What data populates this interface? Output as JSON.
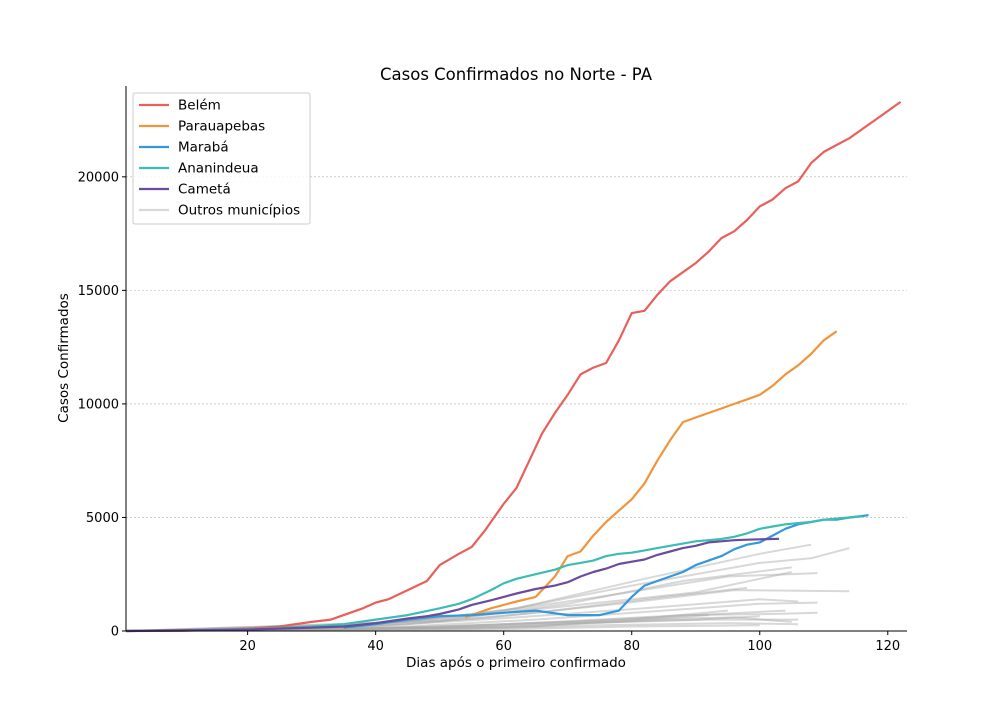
{
  "chart_data": {
    "type": "line",
    "title": "Casos Confirmados no Norte - PA",
    "xlabel": "Dias após o primeiro confirmado",
    "ylabel": "Casos Confirmados",
    "xlim": [
      1,
      123
    ],
    "ylim": [
      0,
      24000
    ],
    "x_ticks": [
      20,
      40,
      60,
      80,
      100,
      120
    ],
    "y_ticks": [
      0,
      5000,
      10000,
      15000,
      20000
    ],
    "grid": "horizontal dashed",
    "legend_position": "top-left",
    "series": [
      {
        "name": "Belém",
        "color": "#e8605a",
        "points": [
          [
            1,
            1
          ],
          [
            10,
            8
          ],
          [
            20,
            100
          ],
          [
            25,
            200
          ],
          [
            30,
            400
          ],
          [
            33,
            500
          ],
          [
            35,
            700
          ],
          [
            38,
            1000
          ],
          [
            40,
            1250
          ],
          [
            42,
            1400
          ],
          [
            45,
            1800
          ],
          [
            48,
            2200
          ],
          [
            50,
            2900
          ],
          [
            53,
            3400
          ],
          [
            55,
            3700
          ],
          [
            57,
            4400
          ],
          [
            60,
            5600
          ],
          [
            62,
            6300
          ],
          [
            64,
            7500
          ],
          [
            66,
            8700
          ],
          [
            68,
            9600
          ],
          [
            70,
            10400
          ],
          [
            72,
            11300
          ],
          [
            74,
            11600
          ],
          [
            76,
            11800
          ],
          [
            78,
            12800
          ],
          [
            80,
            14000
          ],
          [
            82,
            14100
          ],
          [
            84,
            14800
          ],
          [
            86,
            15400
          ],
          [
            88,
            15800
          ],
          [
            90,
            16200
          ],
          [
            92,
            16700
          ],
          [
            94,
            17300
          ],
          [
            96,
            17600
          ],
          [
            98,
            18100
          ],
          [
            100,
            18700
          ],
          [
            102,
            19000
          ],
          [
            104,
            19500
          ],
          [
            106,
            19800
          ],
          [
            108,
            20600
          ],
          [
            110,
            21100
          ],
          [
            112,
            21400
          ],
          [
            114,
            21700
          ],
          [
            116,
            22100
          ],
          [
            118,
            22500
          ],
          [
            120,
            22900
          ],
          [
            122,
            23300
          ]
        ]
      },
      {
        "name": "Parauapebas",
        "color": "#f0953b",
        "points": [
          [
            54,
            600
          ],
          [
            58,
            1000
          ],
          [
            62,
            1300
          ],
          [
            65,
            1500
          ],
          [
            68,
            2400
          ],
          [
            70,
            3300
          ],
          [
            72,
            3500
          ],
          [
            74,
            4200
          ],
          [
            76,
            4800
          ],
          [
            78,
            5300
          ],
          [
            80,
            5800
          ],
          [
            82,
            6500
          ],
          [
            84,
            7500
          ],
          [
            86,
            8400
          ],
          [
            88,
            9200
          ],
          [
            90,
            9400
          ],
          [
            92,
            9600
          ],
          [
            94,
            9800
          ],
          [
            96,
            10000
          ],
          [
            98,
            10200
          ],
          [
            100,
            10400
          ],
          [
            102,
            10800
          ],
          [
            104,
            11300
          ],
          [
            106,
            11700
          ],
          [
            108,
            12200
          ],
          [
            110,
            12800
          ],
          [
            112,
            13200
          ]
        ]
      },
      {
        "name": "Marabá",
        "color": "#3498db",
        "points": [
          [
            35,
            150
          ],
          [
            40,
            300
          ],
          [
            45,
            500
          ],
          [
            50,
            650
          ],
          [
            55,
            700
          ],
          [
            60,
            800
          ],
          [
            65,
            900
          ],
          [
            70,
            700
          ],
          [
            75,
            700
          ],
          [
            78,
            900
          ],
          [
            80,
            1500
          ],
          [
            82,
            2000
          ],
          [
            84,
            2200
          ],
          [
            86,
            2400
          ],
          [
            88,
            2600
          ],
          [
            90,
            2900
          ],
          [
            92,
            3100
          ],
          [
            94,
            3300
          ],
          [
            96,
            3600
          ],
          [
            98,
            3800
          ],
          [
            100,
            3900
          ],
          [
            102,
            4200
          ],
          [
            104,
            4500
          ],
          [
            106,
            4700
          ],
          [
            108,
            4800
          ],
          [
            110,
            4900
          ],
          [
            112,
            4900
          ],
          [
            114,
            5000
          ],
          [
            117,
            5100
          ]
        ]
      },
      {
        "name": "Ananindeua",
        "color": "#3cbcb5",
        "points": [
          [
            1,
            1
          ],
          [
            20,
            80
          ],
          [
            30,
            200
          ],
          [
            35,
            300
          ],
          [
            40,
            500
          ],
          [
            45,
            700
          ],
          [
            50,
            1000
          ],
          [
            53,
            1200
          ],
          [
            55,
            1400
          ],
          [
            58,
            1800
          ],
          [
            60,
            2100
          ],
          [
            62,
            2300
          ],
          [
            65,
            2500
          ],
          [
            68,
            2700
          ],
          [
            70,
            2900
          ],
          [
            72,
            3000
          ],
          [
            74,
            3100
          ],
          [
            76,
            3300
          ],
          [
            78,
            3400
          ],
          [
            80,
            3450
          ],
          [
            82,
            3550
          ],
          [
            84,
            3650
          ],
          [
            86,
            3750
          ],
          [
            88,
            3850
          ],
          [
            90,
            3950
          ],
          [
            92,
            4000
          ],
          [
            94,
            4050
          ],
          [
            96,
            4150
          ],
          [
            98,
            4300
          ],
          [
            100,
            4500
          ],
          [
            102,
            4600
          ],
          [
            104,
            4700
          ],
          [
            106,
            4750
          ],
          [
            108,
            4800
          ],
          [
            110,
            4900
          ],
          [
            112,
            4950
          ],
          [
            114,
            5000
          ],
          [
            116,
            5050
          ]
        ]
      },
      {
        "name": "Cametá",
        "color": "#6a4c9c",
        "points": [
          [
            1,
            1
          ],
          [
            20,
            60
          ],
          [
            30,
            150
          ],
          [
            35,
            200
          ],
          [
            40,
            350
          ],
          [
            45,
            550
          ],
          [
            48,
            650
          ],
          [
            50,
            750
          ],
          [
            53,
            950
          ],
          [
            55,
            1150
          ],
          [
            58,
            1350
          ],
          [
            60,
            1500
          ],
          [
            62,
            1650
          ],
          [
            65,
            1850
          ],
          [
            68,
            2000
          ],
          [
            70,
            2150
          ],
          [
            72,
            2400
          ],
          [
            74,
            2600
          ],
          [
            76,
            2750
          ],
          [
            78,
            2950
          ],
          [
            80,
            3050
          ],
          [
            82,
            3150
          ],
          [
            84,
            3350
          ],
          [
            86,
            3500
          ],
          [
            88,
            3650
          ],
          [
            90,
            3750
          ],
          [
            92,
            3900
          ],
          [
            94,
            3950
          ],
          [
            96,
            4000
          ],
          [
            98,
            4020
          ],
          [
            100,
            4040
          ],
          [
            103,
            4060
          ]
        ]
      },
      {
        "name": "Outros municípios",
        "color": "#a9a9a9",
        "others": [
          [
            [
              1,
              1
            ],
            [
              30,
              150
            ],
            [
              50,
              500
            ],
            [
              70,
              1100
            ],
            [
              90,
              1700
            ],
            [
              105,
              2600
            ]
          ],
          [
            [
              1,
              1
            ],
            [
              35,
              200
            ],
            [
              55,
              700
            ],
            [
              75,
              1500
            ],
            [
              95,
              2400
            ],
            [
              109,
              2550
            ]
          ],
          [
            [
              1,
              1
            ],
            [
              40,
              300
            ],
            [
              60,
              900
            ],
            [
              80,
              2000
            ],
            [
              100,
              3000
            ],
            [
              108,
              3200
            ],
            [
              114,
              3650
            ]
          ],
          [
            [
              1,
              1
            ],
            [
              45,
              400
            ],
            [
              62,
              1000
            ],
            [
              82,
              2300
            ],
            [
              100,
              3400
            ],
            [
              108,
              3800
            ]
          ],
          [
            [
              1,
              1
            ],
            [
              50,
              450
            ],
            [
              70,
              1200
            ],
            [
              88,
              2200
            ],
            [
              105,
              2800
            ]
          ],
          [
            [
              1,
              1
            ],
            [
              38,
              200
            ],
            [
              58,
              600
            ],
            [
              78,
              1200
            ],
            [
              96,
              1800
            ],
            [
              114,
              1750
            ]
          ],
          [
            [
              1,
              1
            ],
            [
              42,
              250
            ],
            [
              62,
              600
            ],
            [
              82,
              1000
            ],
            [
              100,
              1400
            ],
            [
              106,
              1300
            ]
          ],
          [
            [
              1,
              1
            ],
            [
              45,
              200
            ],
            [
              65,
              500
            ],
            [
              85,
              900
            ],
            [
              100,
              1200
            ],
            [
              109,
              1250
            ]
          ],
          [
            [
              1,
              1
            ],
            [
              48,
              150
            ],
            [
              68,
              400
            ],
            [
              88,
              700
            ],
            [
              102,
              750
            ],
            [
              109,
              800
            ]
          ],
          [
            [
              1,
              1
            ],
            [
              52,
              120
            ],
            [
              72,
              350
            ],
            [
              92,
              500
            ],
            [
              106,
              500
            ]
          ],
          [
            [
              1,
              1
            ],
            [
              40,
              120
            ],
            [
              60,
              300
            ],
            [
              80,
              500
            ],
            [
              96,
              600
            ],
            [
              105,
              400
            ]
          ],
          [
            [
              1,
              1
            ],
            [
              55,
              100
            ],
            [
              75,
              250
            ],
            [
              95,
              350
            ],
            [
              106,
              300
            ]
          ],
          [
            [
              1,
              1
            ],
            [
              60,
              80
            ],
            [
              80,
              200
            ],
            [
              100,
              250
            ]
          ],
          [
            [
              1,
              1
            ],
            [
              30,
              80
            ],
            [
              50,
              200
            ],
            [
              70,
              400
            ],
            [
              90,
              700
            ],
            [
              104,
              900
            ]
          ],
          [
            [
              1,
              1
            ],
            [
              45,
              300
            ],
            [
              65,
              800
            ],
            [
              85,
              1500
            ],
            [
              98,
              1900
            ]
          ],
          [
            [
              1,
              1
            ],
            [
              50,
              150
            ],
            [
              70,
              350
            ],
            [
              90,
              500
            ],
            [
              100,
              650
            ]
          ],
          [
            [
              1,
              1
            ],
            [
              65,
              200
            ],
            [
              80,
              500
            ],
            [
              95,
              900
            ]
          ],
          [
            [
              1,
              1
            ],
            [
              60,
              150
            ],
            [
              78,
              400
            ],
            [
              92,
              700
            ]
          ]
        ]
      }
    ]
  }
}
